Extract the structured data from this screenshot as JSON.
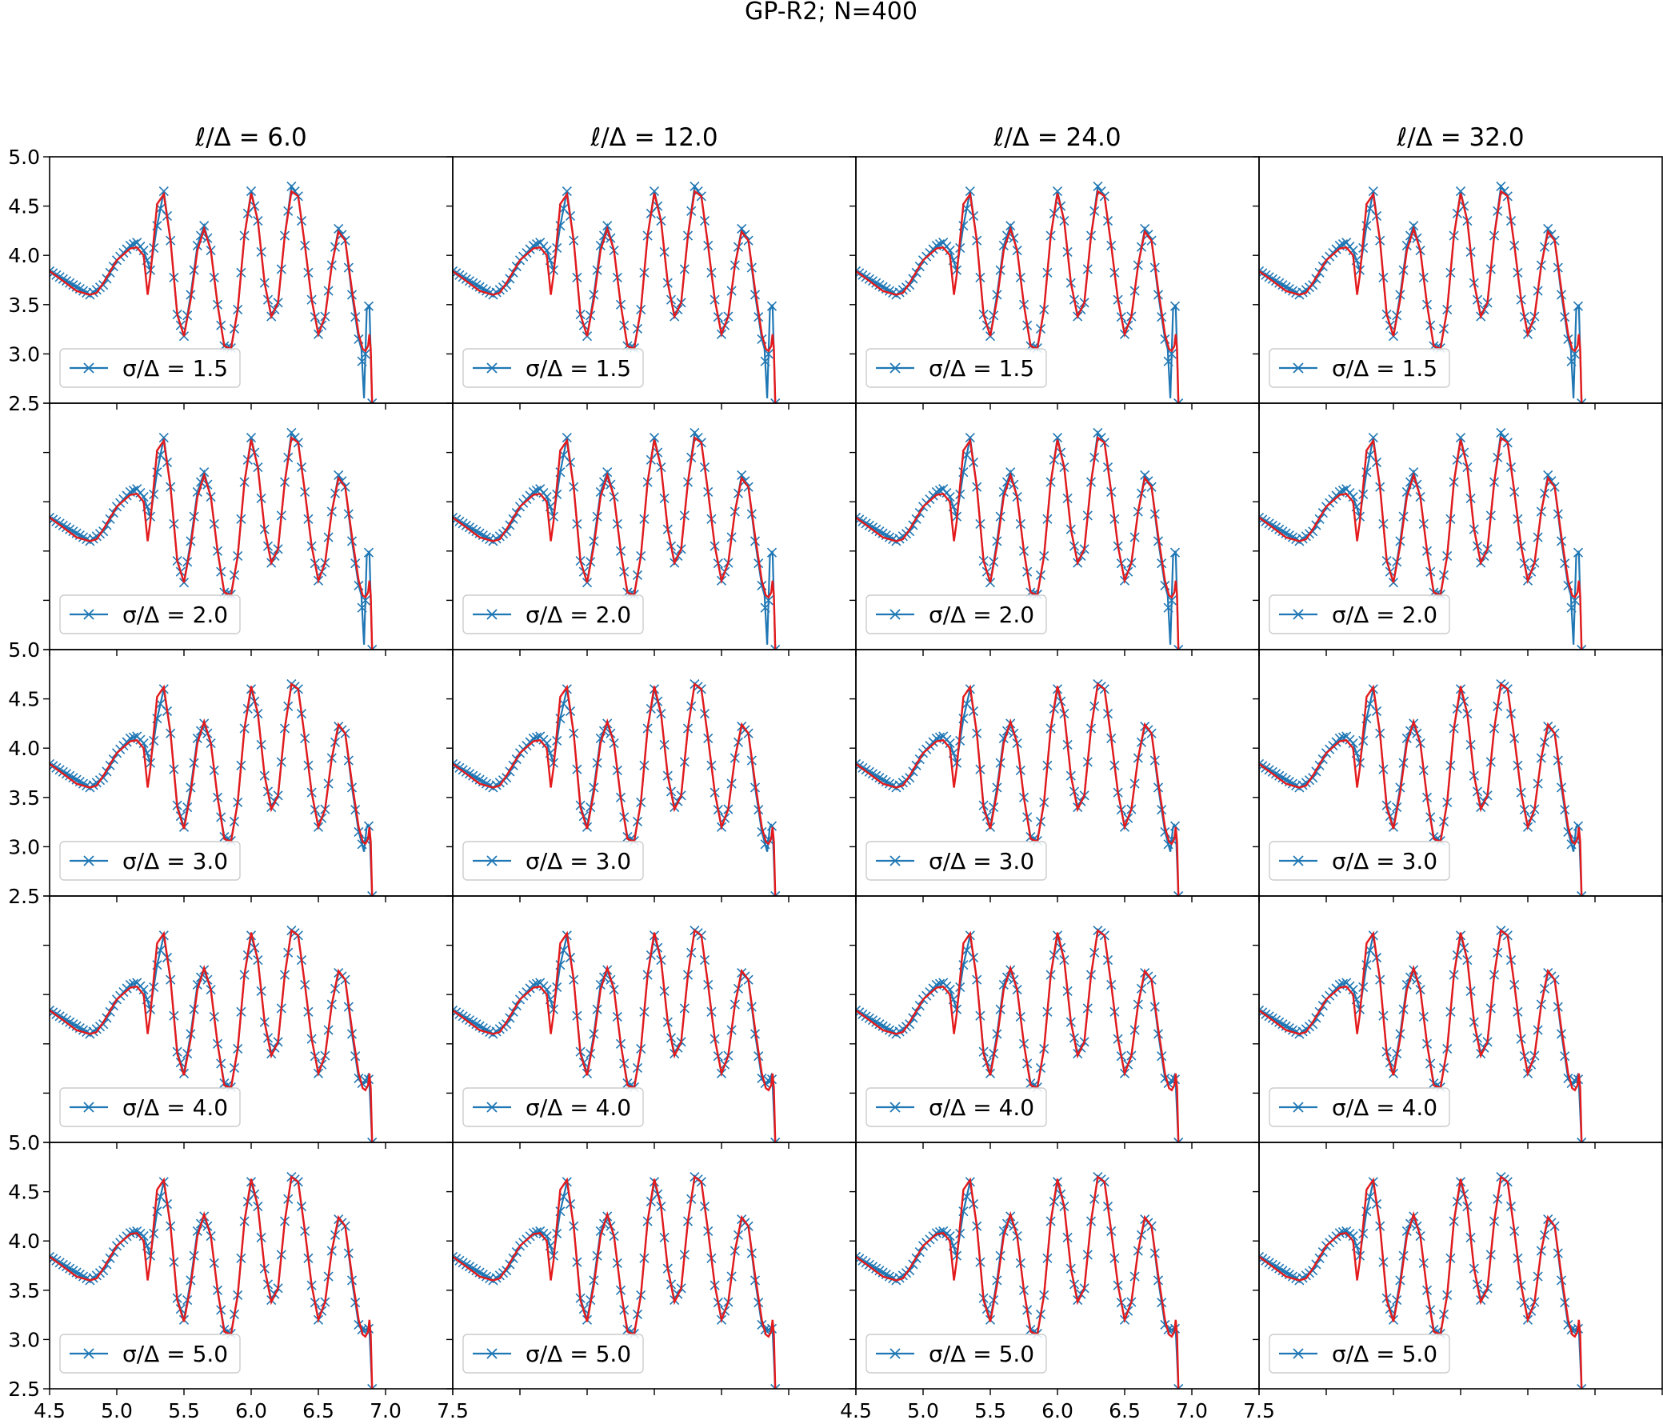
{
  "figure": {
    "title": "GP-R2; N=400"
  },
  "chart_data": {
    "type": "line",
    "grid": false,
    "rows": 5,
    "cols": 4,
    "col_titles": [
      "ℓ/Δ = 6.0",
      "ℓ/Δ = 12.0",
      "ℓ/Δ = 24.0",
      "ℓ/Δ = 32.0"
    ],
    "row_legends": [
      "σ/Δ = 1.5",
      "σ/Δ = 2.0",
      "σ/Δ = 3.0",
      "σ/Δ = 4.0",
      "σ/Δ = 5.0"
    ],
    "legend_position": "lower-left",
    "xlim": [
      4.5,
      7.5
    ],
    "ylim": [
      2.5,
      5.0
    ],
    "x_ticks": [
      4.5,
      5.0,
      5.5,
      6.0,
      6.5,
      7.0,
      7.5
    ],
    "x_tick_labels": [
      "4.5",
      "5.0",
      "5.5",
      "6.0",
      "6.5",
      "7.0",
      "7.5"
    ],
    "y_ticks": [
      2.5,
      3.0,
      3.5,
      4.0,
      4.5,
      5.0
    ],
    "y_tick_labels": [
      "2.5",
      "3.0",
      "3.5",
      "4.0",
      "4.5",
      "5.0"
    ],
    "series_colors": {
      "estimate": "#1f77b4",
      "reference": "#e41a1c"
    },
    "reference_curve": {
      "x": [
        4.5,
        4.6,
        4.7,
        4.8,
        4.85,
        4.9,
        5.0,
        5.1,
        5.15,
        5.2,
        5.23,
        5.25,
        5.3,
        5.35,
        5.4,
        5.45,
        5.5,
        5.55,
        5.6,
        5.65,
        5.7,
        5.75,
        5.8,
        5.85,
        5.9,
        5.95,
        6.0,
        6.05,
        6.1,
        6.15,
        6.2,
        6.25,
        6.3,
        6.35,
        6.4,
        6.45,
        6.5,
        6.55,
        6.6,
        6.65,
        6.7,
        6.75,
        6.8,
        6.83,
        6.85,
        6.87,
        6.88,
        6.89,
        6.9
      ],
      "y": [
        3.84,
        3.74,
        3.64,
        3.6,
        3.62,
        3.72,
        3.95,
        4.07,
        4.08,
        4.0,
        3.6,
        3.8,
        4.52,
        4.62,
        4.15,
        3.4,
        3.18,
        3.55,
        4.05,
        4.27,
        4.05,
        3.5,
        3.08,
        3.05,
        3.45,
        4.2,
        4.63,
        4.35,
        3.72,
        3.38,
        3.52,
        4.2,
        4.65,
        4.6,
        4.1,
        3.55,
        3.2,
        3.38,
        3.9,
        4.24,
        4.15,
        3.65,
        3.2,
        3.05,
        3.03,
        3.08,
        3.2,
        3.05,
        2.5
      ]
    },
    "estimate_curves": [
      {
        "x": [
          4.5,
          4.8,
          4.9,
          5.0,
          5.1,
          5.15,
          5.2,
          5.25,
          5.3,
          5.35,
          5.4,
          5.45,
          5.5,
          5.55,
          5.6,
          5.65,
          5.7,
          5.75,
          5.8,
          5.85,
          5.9,
          5.95,
          6.0,
          6.05,
          6.1,
          6.15,
          6.2,
          6.25,
          6.3,
          6.35,
          6.4,
          6.45,
          6.5,
          6.55,
          6.6,
          6.65,
          6.7,
          6.75,
          6.8,
          6.82,
          6.84,
          6.86,
          6.87,
          6.88,
          6.9
        ],
        "y": [
          3.84,
          3.6,
          3.7,
          3.95,
          4.1,
          4.13,
          4.05,
          3.85,
          4.3,
          4.65,
          4.15,
          3.4,
          3.18,
          3.6,
          4.1,
          4.3,
          4.05,
          3.5,
          3.08,
          3.06,
          3.45,
          4.2,
          4.65,
          4.35,
          3.72,
          3.38,
          3.52,
          4.2,
          4.7,
          4.6,
          4.1,
          3.55,
          3.2,
          3.38,
          3.9,
          4.27,
          4.15,
          3.6,
          3.15,
          3.05,
          2.55,
          3.45,
          3.47,
          3.5,
          2.5
        ]
      },
      {
        "x": [
          4.5,
          4.8,
          4.9,
          5.0,
          5.1,
          5.15,
          5.2,
          5.25,
          5.3,
          5.35,
          5.4,
          5.45,
          5.5,
          5.55,
          5.6,
          5.65,
          5.7,
          5.75,
          5.8,
          5.85,
          5.9,
          5.95,
          6.0,
          6.05,
          6.1,
          6.15,
          6.2,
          6.25,
          6.3,
          6.35,
          6.4,
          6.45,
          6.5,
          6.55,
          6.6,
          6.65,
          6.7,
          6.75,
          6.8,
          6.82,
          6.84,
          6.86,
          6.87,
          6.88,
          6.9
        ],
        "y": [
          3.84,
          3.6,
          3.7,
          3.95,
          4.1,
          4.13,
          4.05,
          3.85,
          4.3,
          4.65,
          4.15,
          3.4,
          3.18,
          3.6,
          4.1,
          4.3,
          4.05,
          3.5,
          3.08,
          3.06,
          3.45,
          4.2,
          4.65,
          4.35,
          3.72,
          3.38,
          3.52,
          4.2,
          4.7,
          4.6,
          4.1,
          3.55,
          3.2,
          3.38,
          3.9,
          4.27,
          4.15,
          3.6,
          3.15,
          3.05,
          2.55,
          3.45,
          3.47,
          3.5,
          2.5
        ]
      },
      {
        "x": [
          4.5,
          4.8,
          4.9,
          5.0,
          5.1,
          5.15,
          5.2,
          5.25,
          5.3,
          5.35,
          5.4,
          5.45,
          5.5,
          5.55,
          5.6,
          5.65,
          5.7,
          5.75,
          5.8,
          5.85,
          5.9,
          5.95,
          6.0,
          6.05,
          6.1,
          6.15,
          6.2,
          6.25,
          6.3,
          6.35,
          6.4,
          6.45,
          6.5,
          6.55,
          6.6,
          6.65,
          6.7,
          6.75,
          6.8,
          6.82,
          6.84,
          6.86,
          6.87,
          6.88,
          6.9
        ],
        "y": [
          3.84,
          3.6,
          3.7,
          3.95,
          4.1,
          4.12,
          4.05,
          3.85,
          4.3,
          4.6,
          4.15,
          3.42,
          3.2,
          3.6,
          4.1,
          4.25,
          4.05,
          3.5,
          3.1,
          3.06,
          3.45,
          4.2,
          4.6,
          4.35,
          3.72,
          3.4,
          3.52,
          4.2,
          4.65,
          4.6,
          4.1,
          3.55,
          3.2,
          3.38,
          3.9,
          4.22,
          4.15,
          3.6,
          3.15,
          3.05,
          2.95,
          3.2,
          3.22,
          3.2,
          2.5
        ]
      },
      {
        "x": [
          4.5,
          4.8,
          4.9,
          5.0,
          5.1,
          5.15,
          5.2,
          5.25,
          5.3,
          5.35,
          5.4,
          5.45,
          5.5,
          5.55,
          5.6,
          5.65,
          5.7,
          5.75,
          5.8,
          5.85,
          5.9,
          5.95,
          6.0,
          6.05,
          6.1,
          6.15,
          6.2,
          6.25,
          6.3,
          6.35,
          6.4,
          6.45,
          6.5,
          6.55,
          6.6,
          6.65,
          6.7,
          6.75,
          6.8,
          6.82,
          6.84,
          6.86,
          6.87,
          6.88,
          6.9
        ],
        "y": [
          3.84,
          3.6,
          3.7,
          3.95,
          4.1,
          4.12,
          4.05,
          3.85,
          4.3,
          4.6,
          4.15,
          3.42,
          3.2,
          3.6,
          4.1,
          4.25,
          4.05,
          3.5,
          3.1,
          3.06,
          3.45,
          4.2,
          4.6,
          4.35,
          3.72,
          3.4,
          3.52,
          4.2,
          4.65,
          4.6,
          4.1,
          3.55,
          3.2,
          3.38,
          3.9,
          4.22,
          4.15,
          3.6,
          3.15,
          3.1,
          3.1,
          3.15,
          3.18,
          3.1,
          2.5
        ]
      },
      {
        "x": [
          4.5,
          4.8,
          4.9,
          5.0,
          5.1,
          5.15,
          5.2,
          5.25,
          5.3,
          5.35,
          5.4,
          5.45,
          5.5,
          5.55,
          5.6,
          5.65,
          5.7,
          5.75,
          5.8,
          5.85,
          5.9,
          5.95,
          6.0,
          6.05,
          6.1,
          6.15,
          6.2,
          6.25,
          6.3,
          6.35,
          6.4,
          6.45,
          6.5,
          6.55,
          6.6,
          6.65,
          6.7,
          6.75,
          6.8,
          6.82,
          6.84,
          6.86,
          6.87,
          6.88,
          6.9
        ],
        "y": [
          3.84,
          3.6,
          3.7,
          3.95,
          4.08,
          4.1,
          4.05,
          3.85,
          4.3,
          4.6,
          4.15,
          3.42,
          3.2,
          3.6,
          4.1,
          4.25,
          4.05,
          3.5,
          3.1,
          3.06,
          3.45,
          4.2,
          4.6,
          4.35,
          3.72,
          3.4,
          3.52,
          4.2,
          4.65,
          4.6,
          4.1,
          3.55,
          3.2,
          3.38,
          3.9,
          4.22,
          4.15,
          3.6,
          3.15,
          3.1,
          3.1,
          3.1,
          3.12,
          3.1,
          2.5
        ]
      }
    ]
  }
}
